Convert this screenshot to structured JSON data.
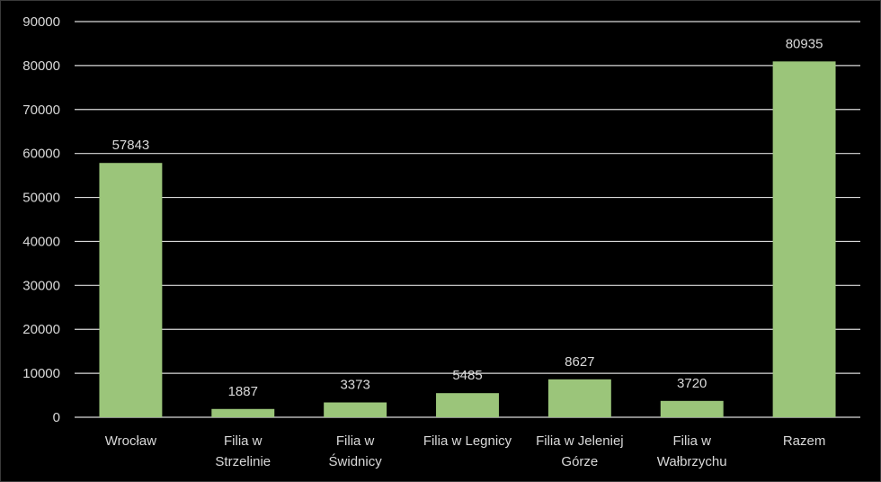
{
  "chart_data": {
    "type": "bar",
    "categories": [
      "Wrocław",
      "Filia w Strzelinie",
      "Filia w Świdnicy",
      "Filia w Legnicy",
      "Filia w Jeleniej Górze",
      "Filia w Wałbrzychu",
      "Razem"
    ],
    "category_lines": [
      [
        "Wrocław"
      ],
      [
        "Filia w",
        "Strzelinie"
      ],
      [
        "Filia w",
        "Świdnicy"
      ],
      [
        "Filia w Legnicy"
      ],
      [
        "Filia w Jeleniej",
        "Górze"
      ],
      [
        "Filia w",
        "Wałbrzychu"
      ],
      [
        "Razem"
      ]
    ],
    "values": [
      57843,
      1887,
      3373,
      5485,
      8627,
      3720,
      80935
    ],
    "data_labels": [
      "57843",
      "1887",
      "3373",
      "5485",
      "8627",
      "3720",
      "80935"
    ],
    "title": "",
    "xlabel": "",
    "ylabel": "",
    "ylim": [
      0,
      90000
    ],
    "yticks": [
      0,
      10000,
      20000,
      30000,
      40000,
      50000,
      60000,
      70000,
      80000,
      90000
    ],
    "grid": true,
    "legend": "none",
    "colors": {
      "bar": "#9bc57a",
      "grid": "#d9d9d9",
      "background": "#000000",
      "text": "#d9d9d9"
    }
  }
}
